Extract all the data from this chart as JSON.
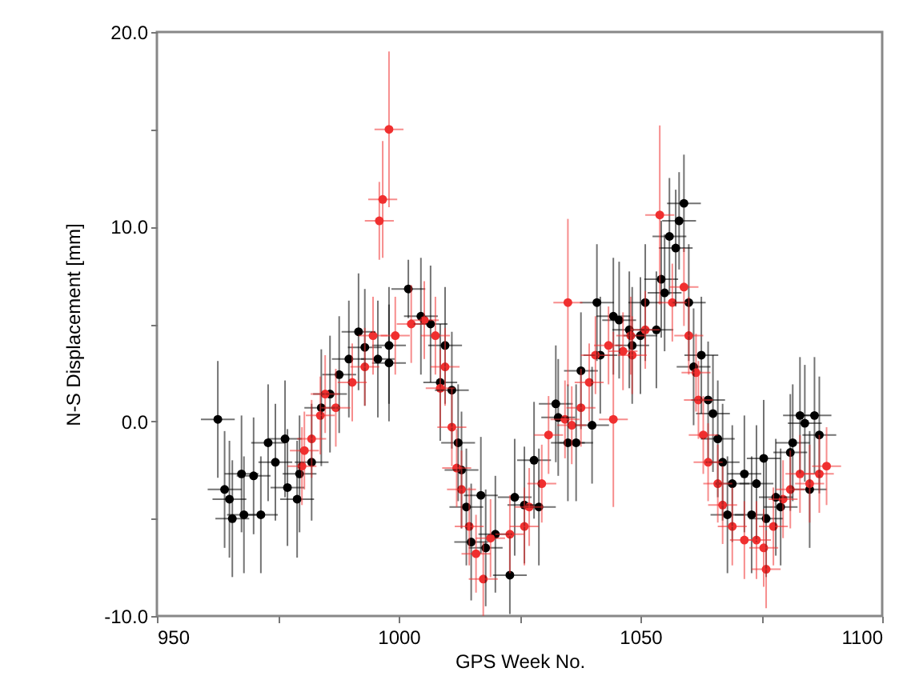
{
  "chart_data": {
    "type": "scatter",
    "xlabel": "GPS Week No.",
    "ylabel": "N-S Displacement [mm]",
    "xlim": [
      950,
      1100
    ],
    "ylim": [
      -10,
      20
    ],
    "xticks": [
      950,
      {
        "value": 975,
        "label": null
      },
      1000,
      {
        "value": 1025,
        "label": null
      },
      1050,
      {
        "value": 1075,
        "label": null
      },
      1100
    ],
    "yticks": [
      {
        "value": -10,
        "label": "-10.0"
      },
      {
        "value": -5,
        "label": null
      },
      {
        "value": 0,
        "label": "0.0"
      },
      {
        "value": 5,
        "label": null
      },
      {
        "value": 10,
        "label": "10.0"
      },
      {
        "value": 15,
        "label": null
      },
      {
        "value": 20,
        "label": "20.0"
      }
    ],
    "grid": false,
    "marker": "circle",
    "series": [
      {
        "color": "#000000",
        "x": [
          962.6,
          964,
          965,
          965.6,
          967.5,
          968,
          970,
          971.5,
          973,
          974.5,
          976.5,
          977,
          979,
          979.5,
          982,
          984,
          985.8,
          987.7,
          989.7,
          991.7,
          993,
          995.7,
          998,
          998,
          1002,
          1004.6,
          1006.6,
          1008.6,
          1009.6,
          1011,
          1012.3,
          1013,
          1014,
          1015,
          1017,
          1018,
          1020,
          1023,
          1024,
          1026,
          1028,
          1029,
          1032.5,
          1033,
          1035,
          1036.7,
          1037.7,
          1040,
          1041,
          1041.7,
          1044.4,
          1045.6,
          1047.7,
          1048.3,
          1050,
          1051,
          1053.3,
          1054.3,
          1055,
          1056,
          1057.3,
          1058,
          1059,
          1060,
          1061,
          1062.6,
          1064,
          1065,
          1066,
          1067,
          1068,
          1069,
          1071.5,
          1073,
          1074,
          1075.5,
          1076,
          1078,
          1079,
          1081,
          1081.5,
          1083,
          1084,
          1085,
          1086,
          1087
        ],
        "values": [
          0.1,
          -3.5,
          -4,
          -5,
          -2.7,
          -4.8,
          -2.8,
          -4.8,
          -1.1,
          -2.1,
          -0.9,
          -3.4,
          -4,
          -2.7,
          -2.1,
          0.7,
          1.4,
          2.4,
          3.2,
          4.6,
          3.8,
          3.2,
          3.9,
          3.0,
          6.8,
          5.4,
          5.0,
          2.0,
          3.9,
          1.6,
          -1.1,
          -2.5,
          -4.4,
          -6.2,
          -3.8,
          -6.5,
          -5.8,
          -7.9,
          -3.9,
          -4.3,
          -2.0,
          -4.4,
          0.9,
          0.2,
          -1.1,
          -1.1,
          2.6,
          -0.2,
          6.1,
          3.4,
          5.4,
          5.2,
          4.7,
          3.9,
          4.4,
          6.1,
          4.7,
          7.3,
          6.6,
          9.5,
          8.9,
          10.3,
          11.2,
          6.1,
          2.8,
          3.4,
          1.1,
          0.4,
          -0.9,
          -2.1,
          -4.8,
          -3.2,
          -2.7,
          -4.8,
          -3.2,
          -1.9,
          -5.0,
          -3.9,
          -4.4,
          -1.6,
          -1.1,
          0.3,
          -0.1,
          -3.5,
          0.3,
          -0.7
        ],
        "errors": [
          3,
          3,
          3,
          3,
          3,
          3,
          3,
          3,
          3,
          3,
          3,
          3,
          3,
          3,
          3,
          3,
          3,
          3,
          3,
          3,
          3,
          3,
          3,
          3,
          1.5,
          3,
          3,
          3,
          3,
          3,
          3,
          3,
          3,
          3,
          3,
          3,
          3,
          2,
          3,
          3,
          3,
          3,
          3,
          3,
          3,
          3,
          3,
          3,
          3,
          3,
          3,
          3,
          3,
          3,
          3,
          3,
          3,
          3,
          3,
          3,
          3,
          2.5,
          2.5,
          3,
          3,
          3,
          3,
          3,
          3,
          3,
          3,
          3,
          3,
          3,
          3,
          3,
          3,
          3,
          3,
          3,
          3,
          3,
          3,
          3,
          3,
          3
        ],
        "xerrors": [
          3.5,
          3.5,
          3.5,
          3.5,
          3.5,
          3.5,
          3.5,
          3.5,
          3.5,
          3.5,
          3.5,
          3.5,
          3.5,
          3.5,
          3.5,
          3.5,
          3.5,
          3.5,
          3.5,
          3.5,
          3.5,
          3.5,
          3.5,
          3.5,
          3.5,
          3.5,
          3.5,
          3.5,
          3.5,
          3.5,
          3.5,
          3.5,
          3.5,
          3.5,
          3.5,
          3.5,
          3.5,
          3.5,
          3.5,
          3.5,
          3.5,
          3.5,
          3.5,
          3.5,
          3.5,
          3.5,
          3.5,
          3.5,
          3.5,
          3.5,
          3.5,
          3.5,
          3.5,
          3.5,
          3.5,
          3.5,
          3.5,
          3.5,
          3.5,
          3.5,
          3.5,
          3.5,
          3.5,
          3.5,
          3.5,
          3.5,
          3.5,
          3.5,
          3.5,
          3.5,
          3.5,
          3.5,
          3.5,
          3.5,
          3.5,
          3.5,
          3.5,
          3.5,
          3.5,
          3.5,
          3.5,
          3.5,
          3.5,
          3.5,
          3.5,
          3.5
        ]
      },
      {
        "color": "#f03030",
        "x": [
          980,
          980.5,
          982,
          983.8,
          984.8,
          987,
          990.4,
          993,
          994.7,
          996,
          996.7,
          998,
          999.3,
          1002.6,
          1005.3,
          1007.6,
          1008.6,
          1009.6,
          1011,
          1012,
          1013,
          1014.6,
          1016,
          1017.5,
          1019,
          1023,
          1026,
          1027,
          1029.6,
          1031,
          1034.4,
          1035,
          1035.8,
          1037.7,
          1039.4,
          1040.7,
          1043.4,
          1044.4,
          1046.4,
          1048,
          1048.3,
          1051,
          1054,
          1056.6,
          1059,
          1060,
          1061.5,
          1062,
          1063,
          1064,
          1066,
          1067,
          1069,
          1071.5,
          1074,
          1075.5,
          1076,
          1077.5,
          1079.5,
          1081,
          1083,
          1085,
          1087,
          1088.5
        ],
        "values": [
          -2.3,
          -1.5,
          -0.9,
          0.3,
          1.4,
          0.7,
          2.0,
          2.8,
          4.4,
          10.3,
          11.4,
          15.0,
          4.4,
          5.0,
          5.2,
          4.4,
          1.7,
          2.8,
          -0.3,
          -2.4,
          -3.5,
          -5.4,
          -6.8,
          -8.1,
          -6.0,
          -5.8,
          -5.4,
          -4.4,
          -3.2,
          -0.7,
          0.1,
          6.1,
          -0.2,
          0.7,
          2.0,
          3.4,
          3.9,
          0.1,
          3.6,
          4.4,
          3.4,
          4.7,
          10.6,
          6.1,
          6.9,
          4.4,
          2.5,
          1.1,
          -0.7,
          -2.1,
          -3.2,
          -4.3,
          -5.4,
          -6.1,
          -6.1,
          -6.5,
          -7.6,
          -5.4,
          -4.0,
          -3.5,
          -2.7,
          -3.2,
          -2.7,
          -2.3
        ],
        "errors": [
          2,
          2,
          2,
          2,
          2,
          2,
          2,
          2,
          2,
          2,
          3,
          4,
          2,
          2,
          2,
          2,
          2,
          2,
          2,
          2,
          2,
          2,
          2,
          1.9,
          2,
          2,
          2,
          2,
          2,
          2,
          2,
          4.3,
          2,
          2,
          2,
          2,
          2,
          4.5,
          2,
          2,
          2,
          2,
          4.6,
          2,
          2,
          2,
          2,
          2,
          2,
          2,
          2,
          2,
          2,
          2,
          2,
          2,
          2,
          2,
          2,
          2,
          2,
          2,
          2,
          2
        ],
        "xerrors": [
          3,
          3,
          3,
          3,
          3,
          3,
          3,
          3,
          3,
          3,
          3,
          3,
          3,
          3,
          3,
          3,
          3,
          3,
          3,
          3,
          3,
          3,
          3,
          3,
          3,
          3,
          3,
          3,
          3,
          3,
          3,
          3,
          3,
          3,
          3,
          3,
          3,
          3,
          3,
          3,
          3,
          3,
          3,
          3,
          3,
          3,
          3,
          3,
          3,
          3,
          3,
          3,
          3,
          3,
          3,
          3,
          3,
          3,
          3,
          3,
          3,
          3,
          3,
          3
        ]
      }
    ]
  }
}
